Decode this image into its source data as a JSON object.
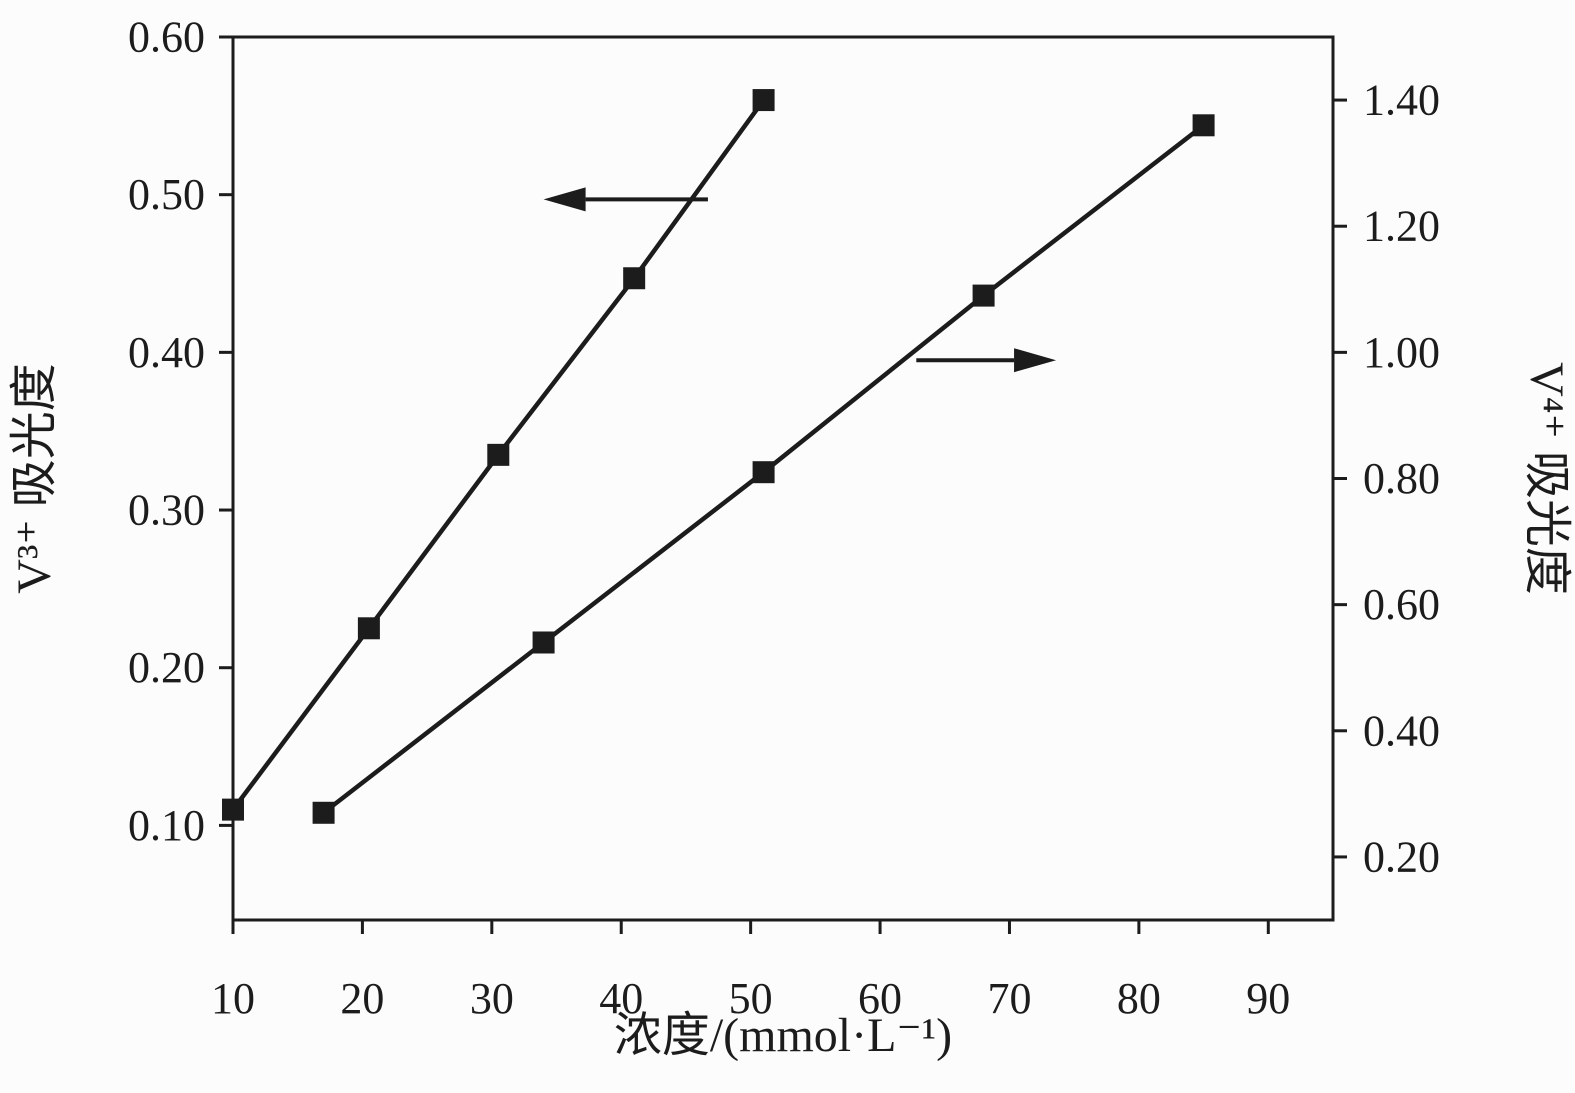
{
  "figure": {
    "background": "#fcfcfc",
    "line_color": "#1c1c1c"
  },
  "chart_data": {
    "type": "line",
    "title": "",
    "xlabel": "浓度/(mmol·L⁻¹)",
    "ylabel_left": "V³⁺ 吸光度",
    "ylabel_right": "V⁴⁺ 吸光度",
    "xlim": [
      10,
      95
    ],
    "ylim_left": [
      0.04,
      0.6
    ],
    "ylim_right": [
      0.1,
      1.5
    ],
    "grid": false,
    "legend": "none",
    "xticks": [
      {
        "value": 10,
        "label": "10"
      },
      {
        "value": 20,
        "label": "20"
      },
      {
        "value": 30,
        "label": "30"
      },
      {
        "value": 40,
        "label": "40"
      },
      {
        "value": 50,
        "label": "50"
      },
      {
        "value": 60,
        "label": "60"
      },
      {
        "value": 70,
        "label": "70"
      },
      {
        "value": 80,
        "label": "80"
      },
      {
        "value": 90,
        "label": "90"
      }
    ],
    "yticks_left": [
      {
        "value": 0.1,
        "label": "0.10"
      },
      {
        "value": 0.2,
        "label": "0.20"
      },
      {
        "value": 0.3,
        "label": "0.30"
      },
      {
        "value": 0.4,
        "label": "0.40"
      },
      {
        "value": 0.5,
        "label": "0.50"
      },
      {
        "value": 0.6,
        "label": "0.60"
      }
    ],
    "yticks_right": [
      {
        "value": 0.2,
        "label": "0.20"
      },
      {
        "value": 0.4,
        "label": "0.40"
      },
      {
        "value": 0.6,
        "label": "0.60"
      },
      {
        "value": 0.8,
        "label": "0.80"
      },
      {
        "value": 1.0,
        "label": "1.00"
      },
      {
        "value": 1.2,
        "label": "1.20"
      },
      {
        "value": 1.4,
        "label": "1.40"
      }
    ],
    "series": [
      {
        "name": "V3+ absorbance (left axis)",
        "axis": "left",
        "marker": "filled-square",
        "color": "#1c1c1c",
        "points": [
          {
            "x": 10.0,
            "y": 0.11
          },
          {
            "x": 20.5,
            "y": 0.225
          },
          {
            "x": 30.5,
            "y": 0.335
          },
          {
            "x": 41.0,
            "y": 0.447
          },
          {
            "x": 51.0,
            "y": 0.56
          }
        ]
      },
      {
        "name": "V4+ absorbance (right axis)",
        "axis": "right",
        "marker": "filled-square",
        "color": "#1c1c1c",
        "points": [
          {
            "x": 17.0,
            "y": 0.27
          },
          {
            "x": 34.0,
            "y": 0.54
          },
          {
            "x": 51.0,
            "y": 0.81
          },
          {
            "x": 68.0,
            "y": 1.09
          },
          {
            "x": 85.0,
            "y": 1.36
          }
        ]
      }
    ],
    "annotations": [
      {
        "type": "arrow",
        "axis": "left",
        "from": {
          "x": 46.7,
          "y": 0.497
        },
        "to": {
          "x": 34.0,
          "y": 0.497
        }
      },
      {
        "type": "arrow",
        "axis": "left",
        "from": {
          "x": 62.8,
          "y": 0.395
        },
        "to": {
          "x": 73.6,
          "y": 0.395
        }
      }
    ]
  }
}
